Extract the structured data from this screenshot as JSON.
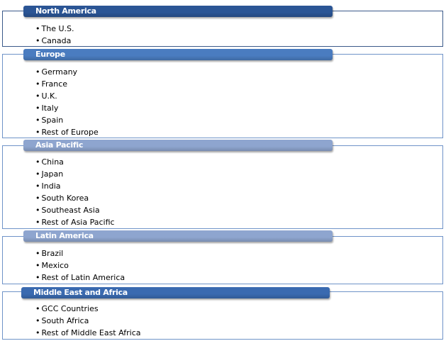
{
  "regions": [
    {
      "title": "North America",
      "header_color": "#2b5595",
      "items": [
        "The U.S.",
        "Canada"
      ]
    },
    {
      "title": "Europe",
      "header_color": "#4a7cc0",
      "items": [
        "Germany",
        "France",
        "U.K.",
        "Italy",
        "Spain",
        "Rest of Europe"
      ]
    },
    {
      "title": "Asia Pacific",
      "header_color": "#8ea5cf",
      "items": [
        "China",
        "Japan",
        "India",
        "South Korea",
        "Southeast Asia",
        "Rest of Asia Pacific"
      ]
    },
    {
      "title": "Latin America",
      "header_color": "#8ea5cf",
      "items": [
        "Brazil",
        "Mexico",
        "Rest of Latin America"
      ]
    },
    {
      "title": "Middle East and Africa",
      "header_color": "#3a6ab0",
      "items": [
        "GCC Countries",
        "South Africa",
        "Rest of Middle East Africa"
      ]
    }
  ]
}
